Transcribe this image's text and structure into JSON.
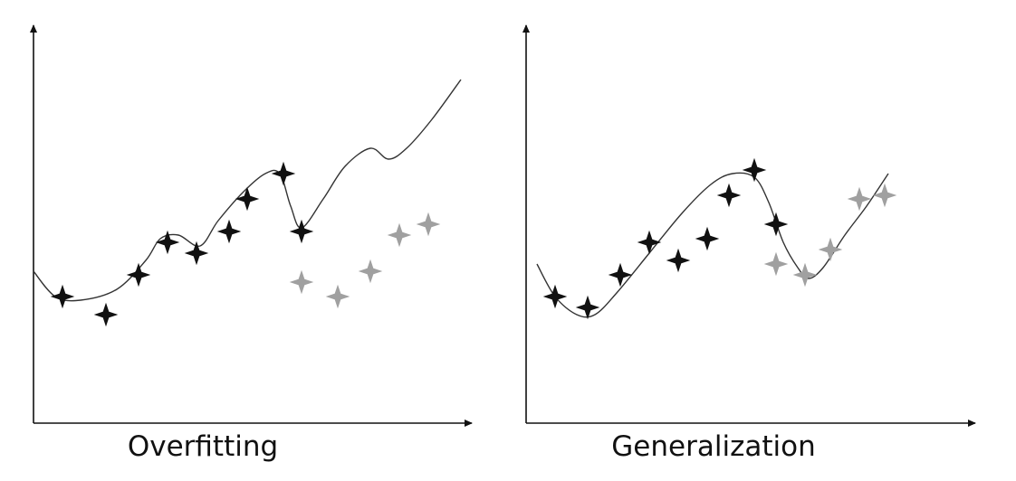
{
  "colors": {
    "axis": "#111111",
    "curve": "#333333",
    "training_point": "#111111",
    "test_point": "#a0a0a0"
  },
  "point_icon": "four-point-star-icon",
  "panels": [
    {
      "caption": "Overfitting",
      "training_points": [
        [
          8,
          35
        ],
        [
          20,
          30
        ],
        [
          29,
          41
        ],
        [
          37,
          50
        ],
        [
          45,
          47
        ],
        [
          54,
          53
        ],
        [
          59,
          62
        ],
        [
          69,
          69
        ],
        [
          74,
          53
        ]
      ],
      "test_points": [
        [
          74,
          39
        ],
        [
          84,
          35
        ],
        [
          93,
          42
        ],
        [
          101,
          52
        ],
        [
          109,
          55
        ]
      ],
      "curve": [
        [
          0,
          42
        ],
        [
          6,
          35
        ],
        [
          13,
          34
        ],
        [
          23,
          37
        ],
        [
          31,
          45
        ],
        [
          35,
          51
        ],
        [
          40,
          52
        ],
        [
          46,
          49
        ],
        [
          51,
          56
        ],
        [
          58,
          64
        ],
        [
          64,
          69
        ],
        [
          68,
          69
        ],
        [
          71,
          60
        ],
        [
          74,
          54
        ],
        [
          80,
          62
        ],
        [
          86,
          71
        ],
        [
          93,
          76
        ],
        [
          98,
          73
        ],
        [
          103,
          76
        ],
        [
          110,
          84
        ],
        [
          118,
          95
        ]
      ]
    },
    {
      "caption": "Generalization",
      "training_points": [
        [
          8,
          35
        ],
        [
          17,
          32
        ],
        [
          26,
          41
        ],
        [
          34,
          50
        ],
        [
          42,
          45
        ],
        [
          50,
          51
        ],
        [
          56,
          63
        ],
        [
          63,
          70
        ],
        [
          69,
          55
        ]
      ],
      "test_points": [
        [
          69,
          44
        ],
        [
          77,
          41
        ],
        [
          84,
          48
        ],
        [
          92,
          62
        ],
        [
          99,
          63
        ]
      ],
      "curve": [
        [
          3,
          44
        ],
        [
          8,
          35
        ],
        [
          14,
          30
        ],
        [
          19,
          30
        ],
        [
          25,
          36
        ],
        [
          34,
          47
        ],
        [
          43,
          58
        ],
        [
          51,
          66
        ],
        [
          57,
          69
        ],
        [
          63,
          68
        ],
        [
          67,
          61
        ],
        [
          71,
          50
        ],
        [
          75,
          43
        ],
        [
          78,
          40
        ],
        [
          82,
          43
        ],
        [
          88,
          52
        ],
        [
          94,
          60
        ],
        [
          100,
          69
        ]
      ]
    }
  ]
}
